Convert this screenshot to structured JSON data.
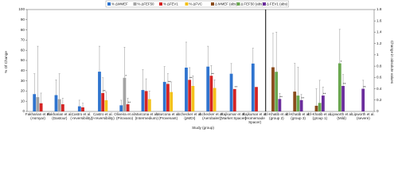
{
  "chart_data": {
    "type": "bar",
    "categories": [
      [
        "Fakharian et al.",
        "(Asmyar)"
      ],
      [
        "Fakharian et al.",
        "(Dastour)"
      ],
      [
        "Castro et al.",
        "(-reversibility)"
      ],
      [
        "Castro et al.",
        "(+reversibility)"
      ],
      [
        "Oliveira et al.",
        "(Pirovano)"
      ],
      [
        "Marcona et al.",
        "(Intermedium)"
      ],
      [
        "Marcona et al.",
        "(Provenant)"
      ],
      [
        "Schecker et al.",
        "(pMDI)"
      ],
      [
        "Schecker et al.",
        "(Aerobaler)"
      ],
      [
        "Rajkumar et al.",
        "(Market Spacer)"
      ],
      [
        "Rajkumar et al.",
        "(Homemade",
        "Spacer)"
      ],
      [
        "El-Khatib et al.",
        "(group 2)"
      ],
      [
        "El-Khatib et al.",
        "(group 3)"
      ],
      [
        "El-Khatib et al.",
        "(group 1)"
      ],
      [
        "Lipworth et al.",
        "(Mild)"
      ],
      [
        "Lipworth et al.",
        "(severe)"
      ]
    ],
    "series": [
      {
        "name": "% ΔMMEF",
        "color": "#2f74cf",
        "values": [
          17,
          16,
          5,
          39,
          6,
          21,
          29,
          43,
          44,
          37,
          47,
          null,
          null,
          null,
          null,
          null
        ],
        "errors": [
          20,
          15,
          6,
          25,
          5,
          20,
          15,
          25,
          20,
          10,
          15,
          null,
          null,
          null,
          null,
          null
        ],
        "annotations": [
          null,
          null,
          null,
          null,
          null,
          null,
          null,
          null,
          null,
          null,
          null,
          null,
          null,
          null,
          null,
          null
        ]
      },
      {
        "name": "% ΔFEF50",
        "color": "#a3a3a3",
        "values": [
          14,
          12,
          null,
          null,
          33,
          null,
          null,
          null,
          null,
          null,
          null,
          null,
          null,
          null,
          null,
          null
        ],
        "errors": [
          50,
          25,
          null,
          null,
          30,
          null,
          null,
          null,
          null,
          null,
          null,
          null,
          null,
          null,
          null,
          null
        ],
        "annotations": [
          null,
          null,
          null,
          null,
          "*",
          null,
          null,
          null,
          null,
          null,
          null,
          null,
          null,
          null,
          null,
          null
        ]
      },
      {
        "name": "% ΔFEV1",
        "color": "#d42424",
        "values": [
          8,
          7,
          4,
          18,
          7,
          20,
          27,
          31,
          35,
          22,
          24,
          null,
          null,
          null,
          null,
          null
        ],
        "errors": [
          10,
          6,
          4,
          15,
          6,
          12,
          10,
          12,
          10,
          null,
          null,
          null,
          null,
          null,
          null,
          null
        ],
        "annotations": [
          null,
          null,
          null,
          "**",
          "**",
          null,
          "**",
          "**",
          "**",
          "**",
          null,
          null,
          null,
          null,
          null,
          null
        ]
      },
      {
        "name": "% ΔFVC",
        "color": "#f4c21c",
        "values": [
          null,
          null,
          null,
          11,
          null,
          12,
          19,
          25,
          23,
          null,
          null,
          null,
          null,
          null,
          null,
          null
        ],
        "errors": [
          null,
          null,
          null,
          8,
          null,
          8,
          10,
          10,
          8,
          null,
          null,
          null,
          null,
          null,
          null,
          null
        ],
        "annotations": [
          null,
          null,
          null,
          null,
          null,
          null,
          null,
          null,
          null,
          null,
          null,
          null,
          null,
          null,
          null,
          null
        ]
      },
      {
        "name": "Δ MMEF (abs)",
        "color": "#8a4b1c",
        "axis": "y2",
        "values": [
          null,
          null,
          null,
          null,
          null,
          null,
          null,
          null,
          null,
          null,
          null,
          0.78,
          0.35,
          0.1,
          null,
          null
        ],
        "errors": [
          null,
          null,
          null,
          null,
          null,
          null,
          null,
          null,
          null,
          null,
          null,
          0.6,
          0.5,
          0.3,
          null,
          null
        ],
        "annotations": [
          null,
          null,
          null,
          null,
          null,
          null,
          null,
          null,
          null,
          null,
          null,
          null,
          null,
          null,
          null,
          null
        ]
      },
      {
        "name": "Δ FEF50 (abs)",
        "color": "#6aa84f",
        "axis": "y2",
        "values": [
          null,
          null,
          null,
          null,
          null,
          null,
          null,
          null,
          null,
          null,
          null,
          0.7,
          0.28,
          0.15,
          0.85,
          null
        ],
        "errors": [
          null,
          null,
          null,
          null,
          null,
          null,
          null,
          null,
          null,
          null,
          null,
          0.7,
          0.5,
          0.4,
          0.6,
          null
        ],
        "annotations": [
          null,
          null,
          null,
          null,
          null,
          null,
          null,
          null,
          null,
          null,
          null,
          null,
          null,
          null,
          "*",
          null
        ]
      },
      {
        "name": "Δ FEV1 (abs)",
        "color": "#6b2d9c",
        "axis": "y2",
        "values": [
          null,
          null,
          null,
          null,
          null,
          null,
          null,
          null,
          null,
          null,
          null,
          0.22,
          0.2,
          0.28,
          0.45,
          0.4
        ],
        "errors": [
          null,
          null,
          null,
          null,
          null,
          null,
          null,
          null,
          null,
          null,
          null,
          0.1,
          0.1,
          0.15,
          0.2,
          0.15
        ],
        "annotations": [
          null,
          null,
          null,
          null,
          null,
          null,
          null,
          null,
          null,
          null,
          null,
          "**",
          "**",
          "**",
          "**",
          "**"
        ]
      }
    ],
    "ylabel": "% Of Change",
    "y2label": "Change in absolute values",
    "xlabel": "Study (group)",
    "ylim": [
      0,
      100
    ],
    "yticks": [
      0,
      10,
      20,
      30,
      40,
      50,
      60,
      70,
      80,
      90,
      100
    ],
    "y2lim": [
      0,
      1.8
    ],
    "y2ticks": [
      0,
      0.2,
      0.4,
      0.6,
      0.8,
      1,
      1.2,
      1.4,
      1.6,
      1.8
    ]
  }
}
